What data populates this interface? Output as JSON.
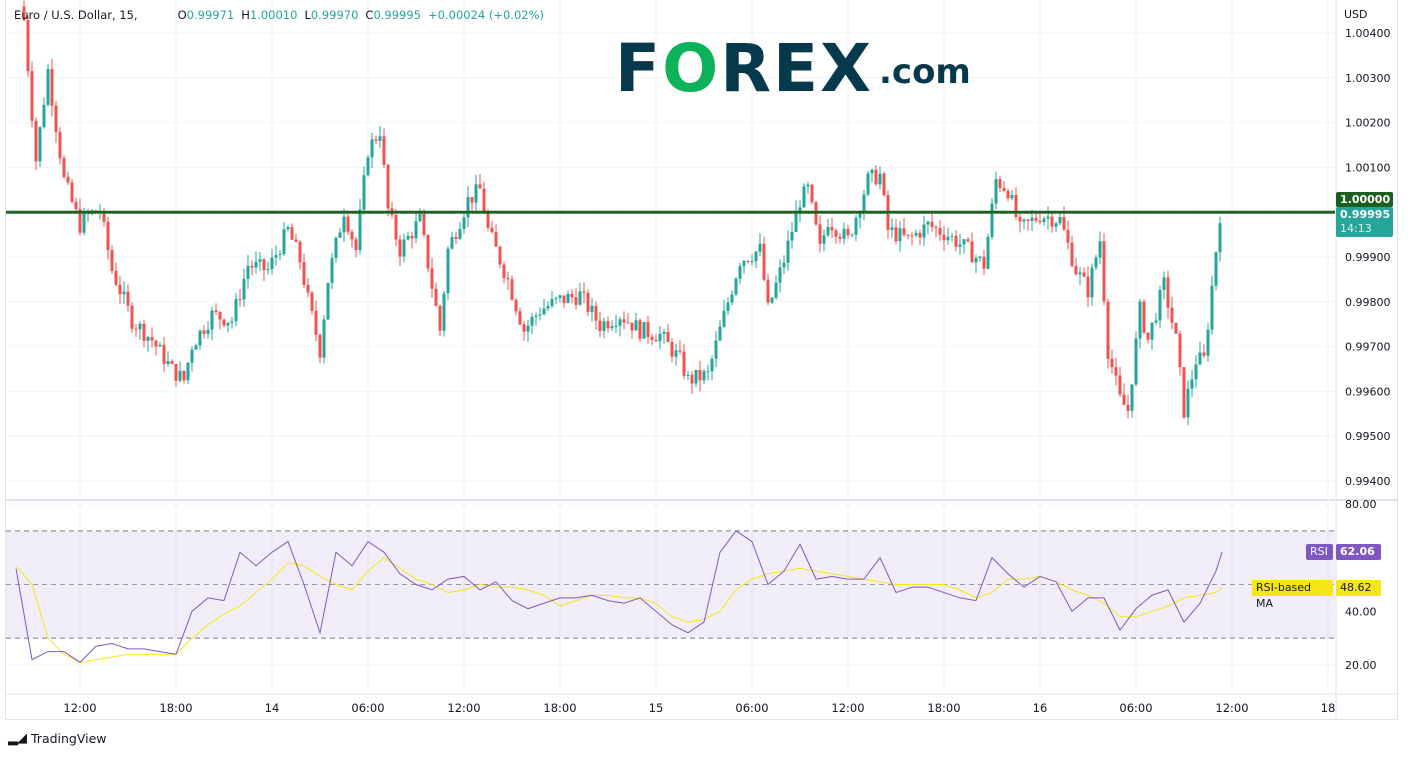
{
  "header": {
    "symbol": "Euro / U.S. Dollar, 15,",
    "open_label": "O",
    "open": "0.99971",
    "high_label": "H",
    "high": "1.00010",
    "low_label": "L",
    "low": "0.99970",
    "close_label": "C",
    "close": "0.99995",
    "change": "+0.00024 (+0.02%)"
  },
  "logo": {
    "text_pre": "F",
    "text_o": "O",
    "text_post": "REX",
    "suffix": ".com"
  },
  "price_axis": {
    "currency": "USD",
    "ticks": [
      "1.00400",
      "1.00300",
      "1.00200",
      "1.00100",
      "1.00000",
      "0.99900",
      "0.99800",
      "0.99700",
      "0.99600",
      "0.99500",
      "0.99400"
    ],
    "horizontal_line_label": "1.00000",
    "horizontal_line_value": 1.0,
    "current_price": "0.99995",
    "countdown": "14:13"
  },
  "time_axis": {
    "ticks": [
      "12:00",
      "18:00",
      "14",
      "06:00",
      "12:00",
      "18:00",
      "15",
      "06:00",
      "12:00",
      "18:00",
      "16",
      "06:00",
      "12:00",
      "18"
    ]
  },
  "rsi_pane": {
    "ticks": [
      "80.00",
      "40.00",
      "20.00"
    ],
    "upper_band": 70,
    "lower_band": 30,
    "middle_band": 50,
    "rsi_label": "RSI",
    "rsi_value": "62.06",
    "ma_label": "RSI-based MA",
    "ma_value": "48.62"
  },
  "colors": {
    "up": "#26a69a",
    "down": "#ef5350",
    "hline": "#1b5e20",
    "rsi": "#7e57c2",
    "ma": "#f5e616"
  },
  "chart_data": {
    "type": "candlestick",
    "interval_minutes": 15,
    "price_path": [
      [
        "13 08:30",
        1.00429
      ],
      [
        "13 09:15",
        1.00117
      ],
      [
        "13 10:00",
        1.00317
      ],
      [
        "13 11:00",
        1.00072
      ],
      [
        "13 12:00",
        0.99971
      ],
      [
        "13 12:30",
        0.99994
      ],
      [
        "13 13:15",
        1.00005
      ],
      [
        "13 14:00",
        0.99871
      ],
      [
        "13 15:15",
        0.99759
      ],
      [
        "13 16:30",
        0.99715
      ],
      [
        "13 17:45",
        0.99648
      ],
      [
        "13 18:30",
        0.99625
      ],
      [
        "13 19:00",
        0.99704
      ],
      [
        "13 20:15",
        0.99771
      ],
      [
        "13 21:30",
        0.99759
      ],
      [
        "13 22:30",
        0.99882
      ],
      [
        "13 23:45",
        0.99871
      ],
      [
        "14 01:00",
        0.9996
      ],
      [
        "14 01:45",
        0.99893
      ],
      [
        "14 02:15",
        0.99804
      ],
      [
        "14 03:00",
        0.99692
      ],
      [
        "14 03:30",
        0.99849
      ],
      [
        "14 04:30",
        1.00005
      ],
      [
        "14 05:15",
        0.99916
      ],
      [
        "14 06:00",
        1.00139
      ],
      [
        "14 06:45",
        1.00183
      ],
      [
        "14 07:15",
        1.00005
      ],
      [
        "14 08:00",
        0.99916
      ],
      [
        "14 09:15",
        0.99983
      ],
      [
        "14 10:30",
        0.99737
      ],
      [
        "14 11:00",
        0.99916
      ],
      [
        "14 12:15",
        1.00027
      ],
      [
        "14 13:00",
        1.0005
      ],
      [
        "14 13:30",
        0.9996
      ],
      [
        "14 14:45",
        0.99849
      ],
      [
        "14 15:45",
        0.99737
      ],
      [
        "14 16:45",
        0.99782
      ],
      [
        "14 18:00",
        0.99804
      ],
      [
        "14 19:15",
        0.99815
      ],
      [
        "14 20:30",
        0.99748
      ],
      [
        "14 21:45",
        0.99771
      ],
      [
        "14 23:00",
        0.99737
      ],
      [
        "15 00:15",
        0.99726
      ],
      [
        "15 01:30",
        0.9967
      ],
      [
        "15 02:00",
        0.99625
      ],
      [
        "15 03:15",
        0.99637
      ],
      [
        "15 04:00",
        0.99737
      ],
      [
        "15 05:15",
        0.99893
      ],
      [
        "15 06:30",
        0.99916
      ],
      [
        "15 07:00",
        0.99782
      ],
      [
        "15 08:00",
        0.99893
      ],
      [
        "15 09:00",
        1.00027
      ],
      [
        "15 09:30",
        1.0005
      ],
      [
        "15 10:15",
        0.99916
      ],
      [
        "15 10:45",
        0.99983
      ],
      [
        "15 12:00",
        0.99938
      ],
      [
        "15 13:15",
        1.00072
      ],
      [
        "15 14:00",
        1.00083
      ],
      [
        "15 14:30",
        0.9996
      ],
      [
        "15 15:45",
        0.99938
      ],
      [
        "15 17:00",
        0.99971
      ],
      [
        "15 18:15",
        0.99949
      ],
      [
        "15 19:30",
        0.99916
      ],
      [
        "15 20:30",
        0.99882
      ],
      [
        "15 21:15",
        1.00072
      ],
      [
        "15 22:00",
        1.0005
      ],
      [
        "15 22:45",
        0.9996
      ],
      [
        "16 00:00",
        0.99994
      ],
      [
        "16 01:15",
        0.99983
      ],
      [
        "16 02:15",
        0.99871
      ],
      [
        "16 03:00",
        0.99826
      ],
      [
        "16 03:45",
        0.99938
      ],
      [
        "16 04:15",
        0.99692
      ],
      [
        "16 05:00",
        0.99581
      ],
      [
        "16 05:30",
        0.99558
      ],
      [
        "16 06:15",
        0.99782
      ],
      [
        "16 06:45",
        0.99715
      ],
      [
        "16 07:45",
        0.99838
      ],
      [
        "16 08:30",
        0.99715
      ],
      [
        "16 09:00",
        0.99558
      ],
      [
        "16 09:45",
        0.9967
      ],
      [
        "16 10:15",
        0.9967
      ],
      [
        "16 11:00",
        0.99916
      ],
      [
        "16 11:15",
        0.99995
      ]
    ],
    "rsi": {
      "start": "13 08:00",
      "step_hours": 1,
      "values": [
        56,
        22,
        25,
        25,
        21,
        27,
        28,
        26,
        26,
        25,
        24,
        40,
        45,
        44,
        62,
        57,
        62,
        66,
        50,
        32,
        62,
        57,
        66,
        62,
        54,
        50,
        48,
        52,
        53,
        48,
        51,
        44,
        41,
        43,
        45,
        45,
        46,
        44,
        43,
        45,
        40,
        35,
        32,
        36,
        62,
        70,
        66,
        50,
        55,
        65,
        52,
        53,
        52,
        52,
        60,
        47,
        49,
        49,
        47,
        45,
        44,
        60,
        54,
        49,
        53,
        51,
        40,
        45,
        45,
        33,
        41,
        46,
        48,
        36,
        43,
        55,
        62.06
      ],
      "ma_values": [
        57,
        50,
        30,
        24,
        21,
        22,
        23,
        24,
        24,
        24,
        24,
        30,
        35,
        39,
        42,
        47,
        52,
        58,
        57,
        53,
        50,
        48,
        55,
        60,
        56,
        52,
        50,
        47,
        48,
        50,
        49,
        49,
        48,
        46,
        42,
        44,
        46,
        46,
        45,
        45,
        43,
        38,
        36,
        37,
        40,
        48,
        52,
        54,
        55,
        56,
        55,
        54,
        53,
        52,
        51,
        50,
        50,
        50,
        50,
        48,
        45,
        47,
        52,
        52,
        53,
        51,
        48,
        46,
        43,
        38,
        38,
        40,
        42,
        45,
        46,
        47,
        48.62
      ]
    },
    "price_ylim": [
      0.9937,
      1.0046
    ],
    "rsi_ylim": [
      10,
      85
    ]
  },
  "footer": {
    "brand": "TradingView"
  }
}
